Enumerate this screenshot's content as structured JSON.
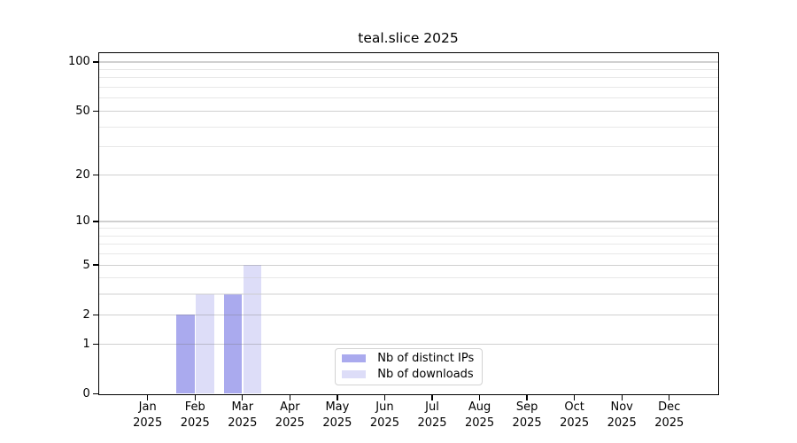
{
  "chart_data": {
    "type": "bar",
    "title": "teal.slice 2025",
    "categories": [
      {
        "month": "Jan",
        "year": "2025"
      },
      {
        "month": "Feb",
        "year": "2025"
      },
      {
        "month": "Mar",
        "year": "2025"
      },
      {
        "month": "Apr",
        "year": "2025"
      },
      {
        "month": "May",
        "year": "2025"
      },
      {
        "month": "Jun",
        "year": "2025"
      },
      {
        "month": "Jul",
        "year": "2025"
      },
      {
        "month": "Aug",
        "year": "2025"
      },
      {
        "month": "Sep",
        "year": "2025"
      },
      {
        "month": "Oct",
        "year": "2025"
      },
      {
        "month": "Nov",
        "year": "2025"
      },
      {
        "month": "Dec",
        "year": "2025"
      }
    ],
    "series": [
      {
        "name": "Nb of distinct IPs",
        "color": "#aaaaee",
        "values": [
          0,
          2,
          3,
          0,
          0,
          0,
          0,
          0,
          0,
          0,
          0,
          0
        ]
      },
      {
        "name": "Nb of downloads",
        "color": "#ddddf8",
        "values": [
          0,
          3,
          5,
          0,
          0,
          0,
          0,
          0,
          0,
          0,
          0,
          0
        ]
      }
    ],
    "y_axis": {
      "scale": "log10(1+x)",
      "tick_values": [
        0,
        1,
        2,
        5,
        10,
        20,
        50,
        100
      ],
      "minor_gridline_values": [
        3,
        4,
        6,
        7,
        8,
        9,
        30,
        40,
        60,
        70,
        80,
        90
      ],
      "range": [
        0,
        112
      ]
    },
    "legend_position": "inside-bottom-center",
    "grid": "horizontal",
    "colors": {
      "background": "#ffffff",
      "axis_frame": "#000000",
      "grid_major": "#cfcfcf",
      "grid_minor": "#eaeaea"
    }
  }
}
